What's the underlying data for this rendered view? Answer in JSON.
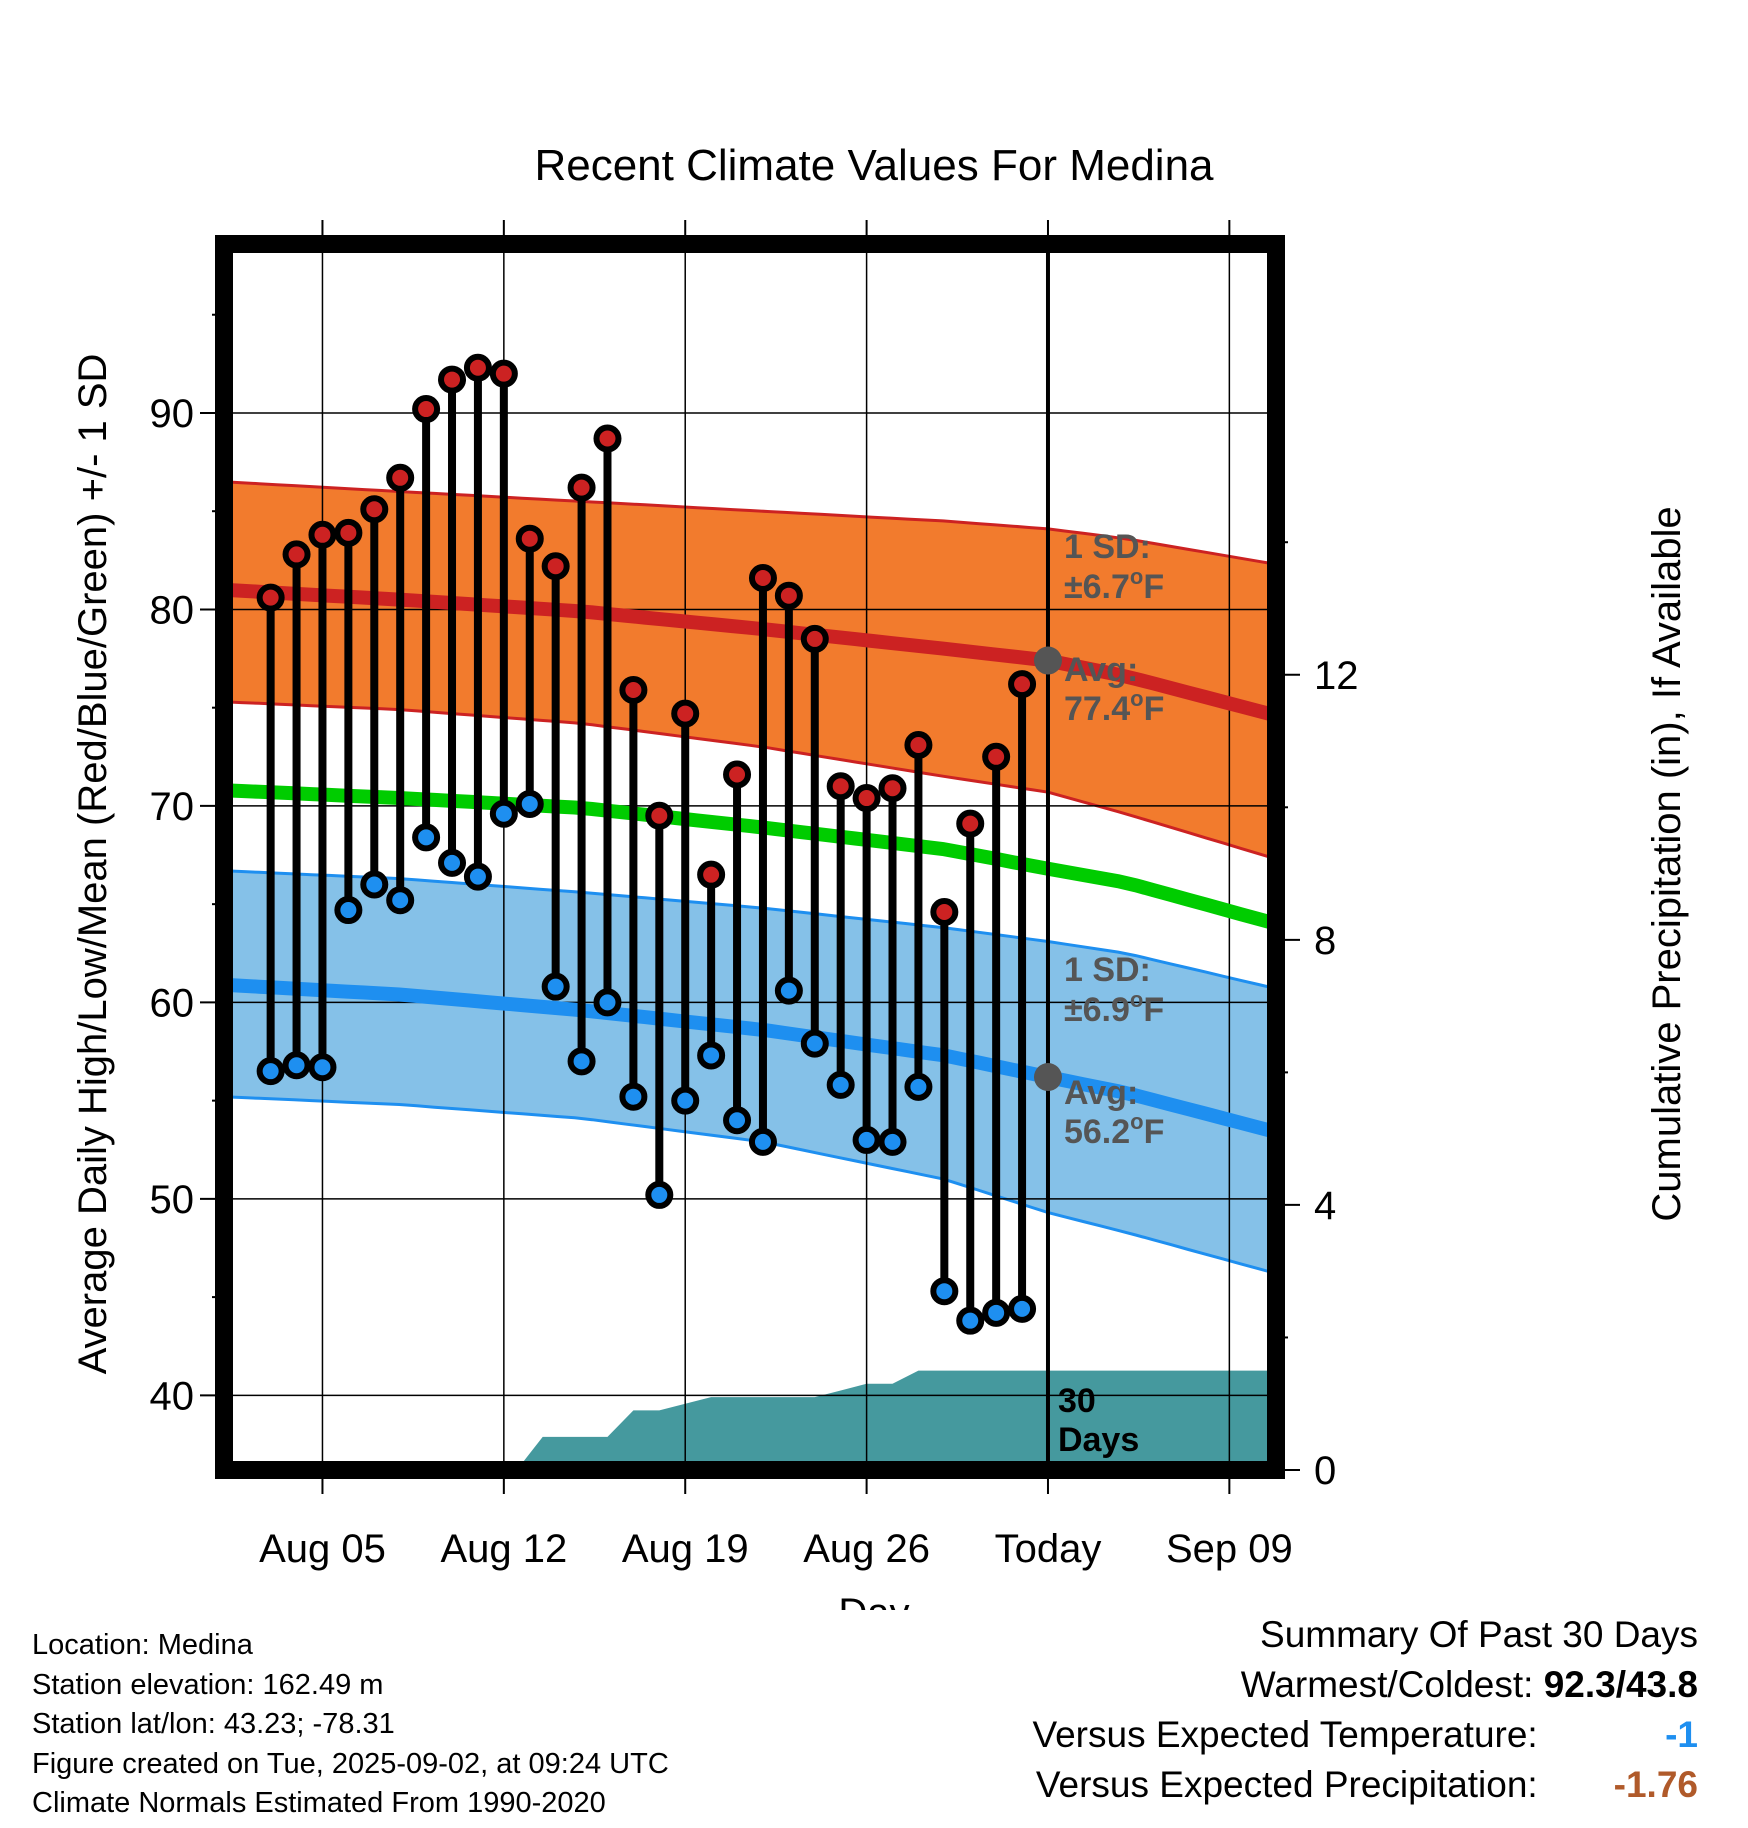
{
  "chart_data": {
    "type": "line",
    "title": "Recent Climate Values For Medina",
    "xlabel": "Day",
    "ylabel": "Average Daily High/Low/Mean (Red/Blue/Green) +/- 1 SD",
    "y2label": "Cumulative Precipitation (in), If Available",
    "ylim": [
      36.2,
      98.6
    ],
    "y2lim": [
      0,
      18.5
    ],
    "yticks": [
      40,
      50,
      60,
      70,
      80,
      90
    ],
    "y2ticks": [
      0,
      4,
      8,
      12
    ],
    "xlim": [
      1.2,
      41.8
    ],
    "xticks": [
      {
        "x": 5,
        "label": "Aug 05"
      },
      {
        "x": 12,
        "label": "Aug 12"
      },
      {
        "x": 19,
        "label": "Aug 19"
      },
      {
        "x": 26,
        "label": "Aug 26"
      },
      {
        "x": 33,
        "label": "Today"
      },
      {
        "x": 40,
        "label": "Sep 09"
      }
    ],
    "today_x": 33,
    "grid": true,
    "daily": {
      "x": [
        3,
        4,
        5,
        6,
        7,
        8,
        9,
        10,
        11,
        12,
        13,
        14,
        15,
        16,
        17,
        18,
        19,
        20,
        21,
        22,
        23,
        24,
        25,
        26,
        27,
        28,
        29,
        30,
        31,
        32
      ],
      "high": [
        80.6,
        82.8,
        83.8,
        83.9,
        85.1,
        86.7,
        90.2,
        91.7,
        92.3,
        92.0,
        83.6,
        82.2,
        86.2,
        88.7,
        75.9,
        69.5,
        74.7,
        66.5,
        71.6,
        81.6,
        80.7,
        78.5,
        71.0,
        70.4,
        70.9,
        73.1,
        64.6,
        69.1,
        72.5,
        76.2
      ],
      "low": [
        56.5,
        56.8,
        56.7,
        64.7,
        66.0,
        65.2,
        68.4,
        67.1,
        66.4,
        69.6,
        70.1,
        60.8,
        57.0,
        60.0,
        55.2,
        50.2,
        55.0,
        57.3,
        54.0,
        52.9,
        60.6,
        57.9,
        55.8,
        53.0,
        52.9,
        55.7,
        45.3,
        43.8,
        44.2,
        44.4
      ]
    },
    "normals": {
      "x": [
        1.2,
        8,
        15,
        22,
        29,
        33,
        36,
        41.8
      ],
      "high_mean": [
        81.0,
        80.5,
        79.9,
        79.0,
        78.0,
        77.4,
        76.6,
        74.6
      ],
      "high_upper": [
        86.5,
        86.0,
        85.5,
        85.0,
        84.5,
        84.1,
        83.6,
        82.3
      ],
      "high_lower": [
        75.3,
        74.9,
        74.2,
        73.0,
        71.5,
        70.7,
        69.6,
        67.3
      ],
      "mean": [
        70.8,
        70.4,
        69.9,
        68.9,
        67.8,
        66.8,
        66.1,
        64.0
      ],
      "low_mean": [
        60.9,
        60.4,
        59.6,
        58.6,
        57.3,
        56.2,
        55.4,
        53.4
      ],
      "low_upper": [
        66.7,
        66.3,
        65.6,
        64.8,
        63.8,
        63.1,
        62.5,
        60.7
      ],
      "low_lower": [
        55.2,
        54.8,
        54.1,
        52.9,
        51.0,
        49.3,
        48.3,
        46.2
      ]
    },
    "precip_cumulative": {
      "x": [
        1.2,
        12.5,
        13.5,
        16,
        17,
        18,
        19,
        20,
        24,
        25,
        26,
        27,
        28,
        29,
        41.8
      ],
      "y": [
        0,
        0,
        0.5,
        0.5,
        0.9,
        0.9,
        1.0,
        1.1,
        1.1,
        1.2,
        1.3,
        1.3,
        1.5,
        1.5,
        1.5
      ]
    },
    "annotations": {
      "high_sd_label": "1 SD:",
      "high_sd_value": "±6.7",
      "high_avg_label": "Avg:",
      "high_avg_value": "77.4",
      "low_sd_label": "1 SD:",
      "low_sd_value": "±6.9",
      "low_avg_label": "Avg:",
      "low_avg_value": "56.2",
      "unit_deg": "o",
      "unit_f": "F",
      "period_count": "30",
      "period_unit": "Days"
    },
    "colors": {
      "high": "#cc2222",
      "high_band": "#f27b2d",
      "low": "#1e8ff0",
      "low_band": "#85c1e8",
      "mean": "#00cc00",
      "precip": "#45999e",
      "point_high": "#cc2222",
      "point_low": "#1e8ff0",
      "today_marker": "#555555"
    }
  },
  "footer": {
    "location": "Location: Medina",
    "elevation": "Station elevation: 162.49 m",
    "latlon": "Station lat/lon: 43.23; -78.31",
    "created": "Figure created on Tue, 2025-09-02, at 09:24 UTC",
    "normals": "Climate Normals Estimated From 1990-2020"
  },
  "summary": {
    "title": "Summary Of Past 30 Days",
    "warmest_label": "Warmest/Coldest:",
    "warmest_value": "92.3/43.8",
    "temp_label": "Versus Expected Temperature:",
    "temp_value": "-1",
    "temp_color": "#1e8ff0",
    "precip_label": "Versus Expected Precipitation:",
    "precip_value": "-1.76",
    "precip_color": "#b05a2a"
  }
}
